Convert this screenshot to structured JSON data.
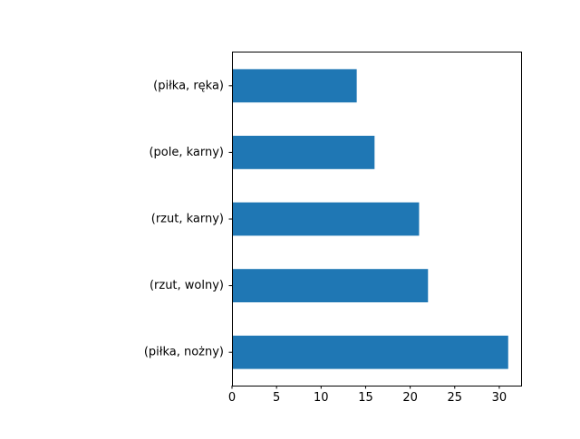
{
  "chart_data": {
    "type": "bar",
    "orientation": "horizontal",
    "categories": [
      "(piłka, nożny)",
      "(rzut, wolny)",
      "(rzut, karny)",
      "(pole, karny)",
      "(piłka, ręka)"
    ],
    "values": [
      31,
      22,
      21,
      16,
      14
    ],
    "title": "",
    "xlabel": "",
    "ylabel": "",
    "xlim": [
      0,
      32.55
    ],
    "xticks": [
      0,
      5,
      10,
      15,
      20,
      25,
      30
    ],
    "grid": false,
    "colors": {
      "bar": "#1f77b4",
      "axis": "#000000",
      "background": "#ffffff"
    }
  }
}
